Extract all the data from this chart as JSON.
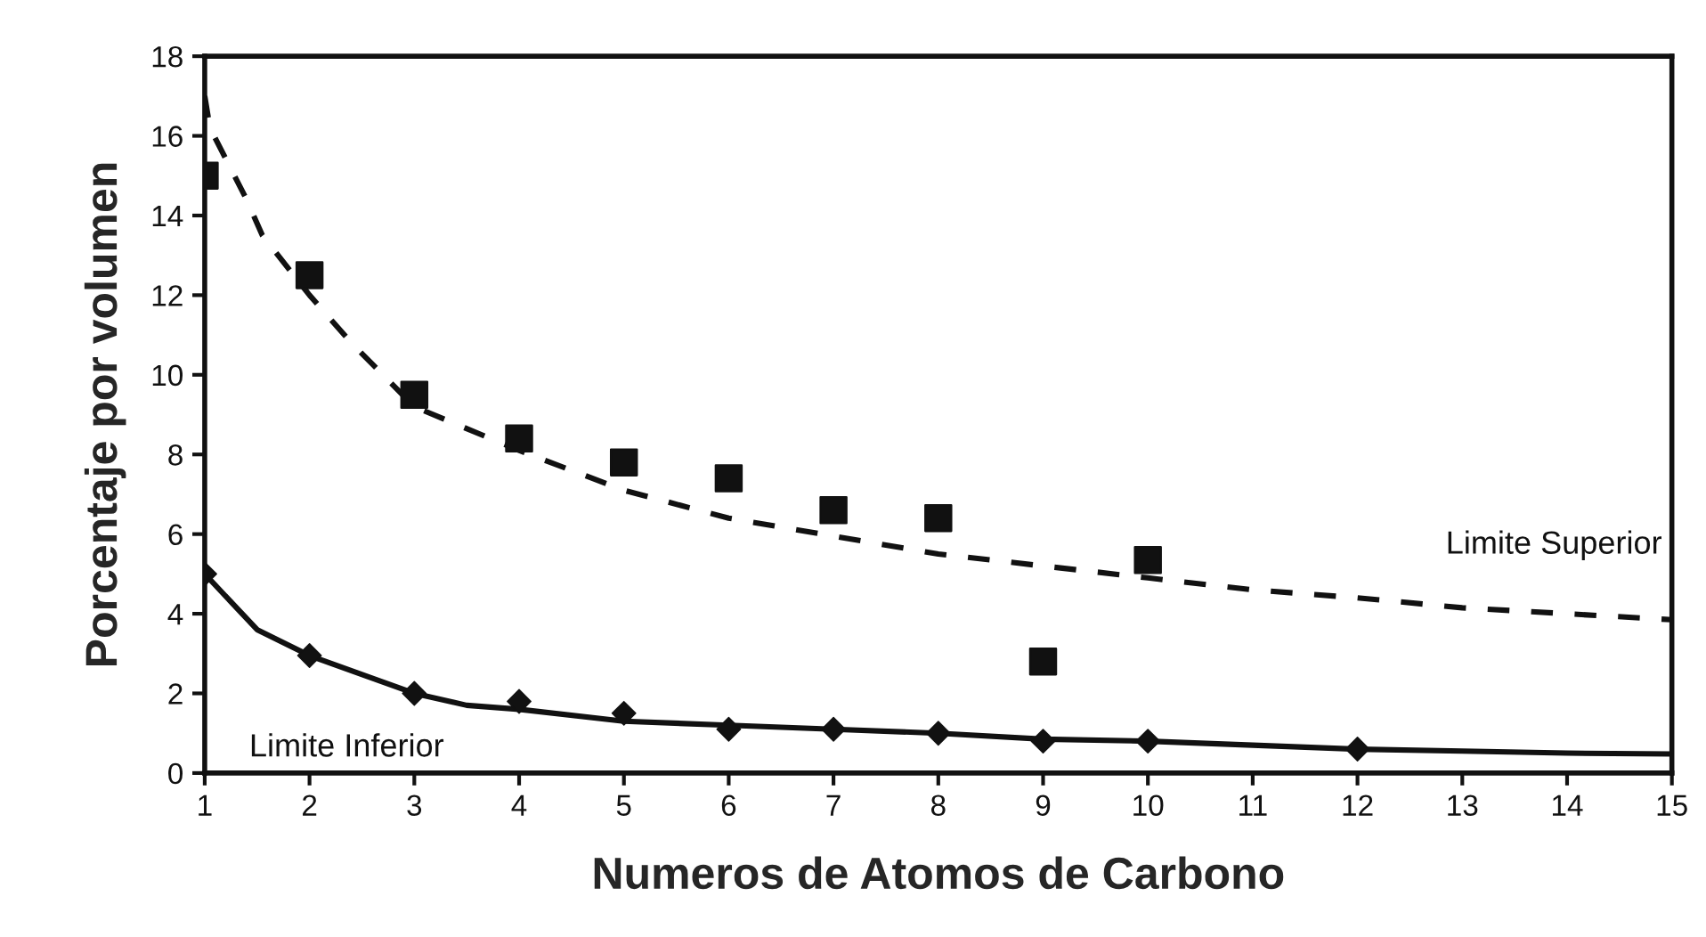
{
  "chart_data": {
    "type": "scatter",
    "xlabel": "Numeros de Atomos de Carbono",
    "ylabel": "Porcentaje por volumen",
    "xlim": [
      1,
      15
    ],
    "xticks": [
      1,
      2,
      3,
      4,
      5,
      6,
      7,
      8,
      9,
      10,
      11,
      12,
      13,
      14,
      15
    ],
    "ylim": [
      0,
      18
    ],
    "yticks": [
      0,
      2,
      4,
      6,
      8,
      10,
      12,
      14,
      16,
      18
    ],
    "grid": false,
    "legend": false,
    "series": [
      {
        "name": "Limite Superior",
        "type": "line",
        "line_style": "dashed",
        "marker": "none",
        "color": "#111111",
        "x": [
          1.0,
          1.05,
          1.4,
          1.55,
          2,
          2.4,
          3,
          4,
          5,
          6,
          7,
          8,
          9,
          10,
          11,
          12,
          13,
          14,
          15
        ],
        "values": [
          17.0,
          16.2,
          14.4,
          13.5,
          12.0,
          10.8,
          9.2,
          8.1,
          7.1,
          6.4,
          5.95,
          5.5,
          5.2,
          4.9,
          4.6,
          4.4,
          4.15,
          4.0,
          3.85
        ]
      },
      {
        "name": "Limite Inferior",
        "type": "line",
        "line_style": "solid",
        "marker": "none",
        "color": "#111111",
        "x": [
          1,
          1.5,
          2,
          3,
          3.5,
          4,
          5,
          6,
          7,
          8,
          9,
          10,
          11,
          12,
          13,
          14,
          15
        ],
        "values": [
          5.0,
          3.6,
          2.95,
          2.0,
          1.7,
          1.6,
          1.3,
          1.2,
          1.1,
          1.0,
          0.85,
          0.8,
          0.7,
          0.6,
          0.55,
          0.5,
          0.48
        ]
      },
      {
        "marker": "square",
        "color": "#111111",
        "x": [
          1,
          2,
          3,
          4,
          5,
          6,
          7,
          8,
          9,
          10
        ],
        "values": [
          15.0,
          12.5,
          9.5,
          8.4,
          7.8,
          7.4,
          6.6,
          6.4,
          2.8,
          5.35
        ]
      },
      {
        "marker": "diamond",
        "color": "#111111",
        "x": [
          1,
          2,
          3,
          4,
          5,
          6,
          7,
          8,
          9,
          10,
          12
        ],
        "values": [
          5.0,
          2.95,
          2.0,
          1.8,
          1.5,
          1.1,
          1.1,
          1.0,
          0.8,
          0.8,
          0.6
        ]
      }
    ]
  }
}
